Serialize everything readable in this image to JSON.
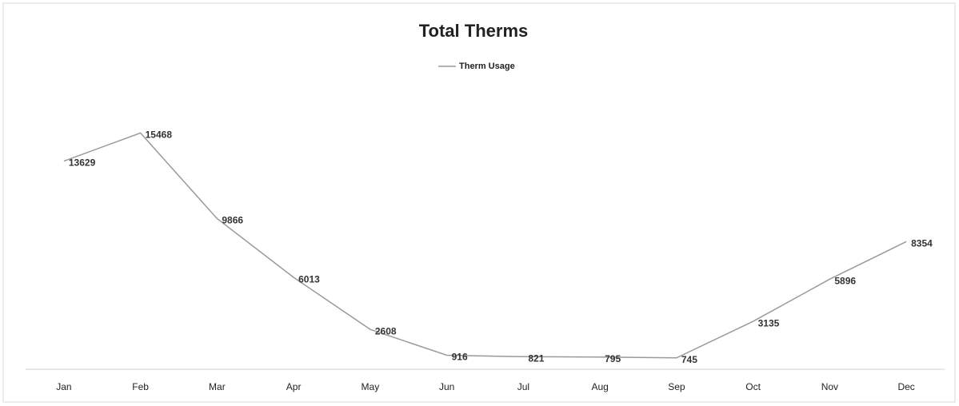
{
  "chart_data": {
    "type": "line",
    "title": "Total Therms",
    "categories": [
      "Jan",
      "Feb",
      "Mar",
      "Apr",
      "May",
      "Jun",
      "Jul",
      "Aug",
      "Sep",
      "Oct",
      "Nov",
      "Dec"
    ],
    "series": [
      {
        "name": "Therm Usage",
        "color": "#9a9a9a",
        "values": [
          13629,
          15468,
          9866,
          6013,
          2608,
          916,
          821,
          795,
          745,
          3135,
          5896,
          8354
        ]
      }
    ],
    "ylim": [
      0,
      18000
    ],
    "legend": "top",
    "data_labels": true
  }
}
